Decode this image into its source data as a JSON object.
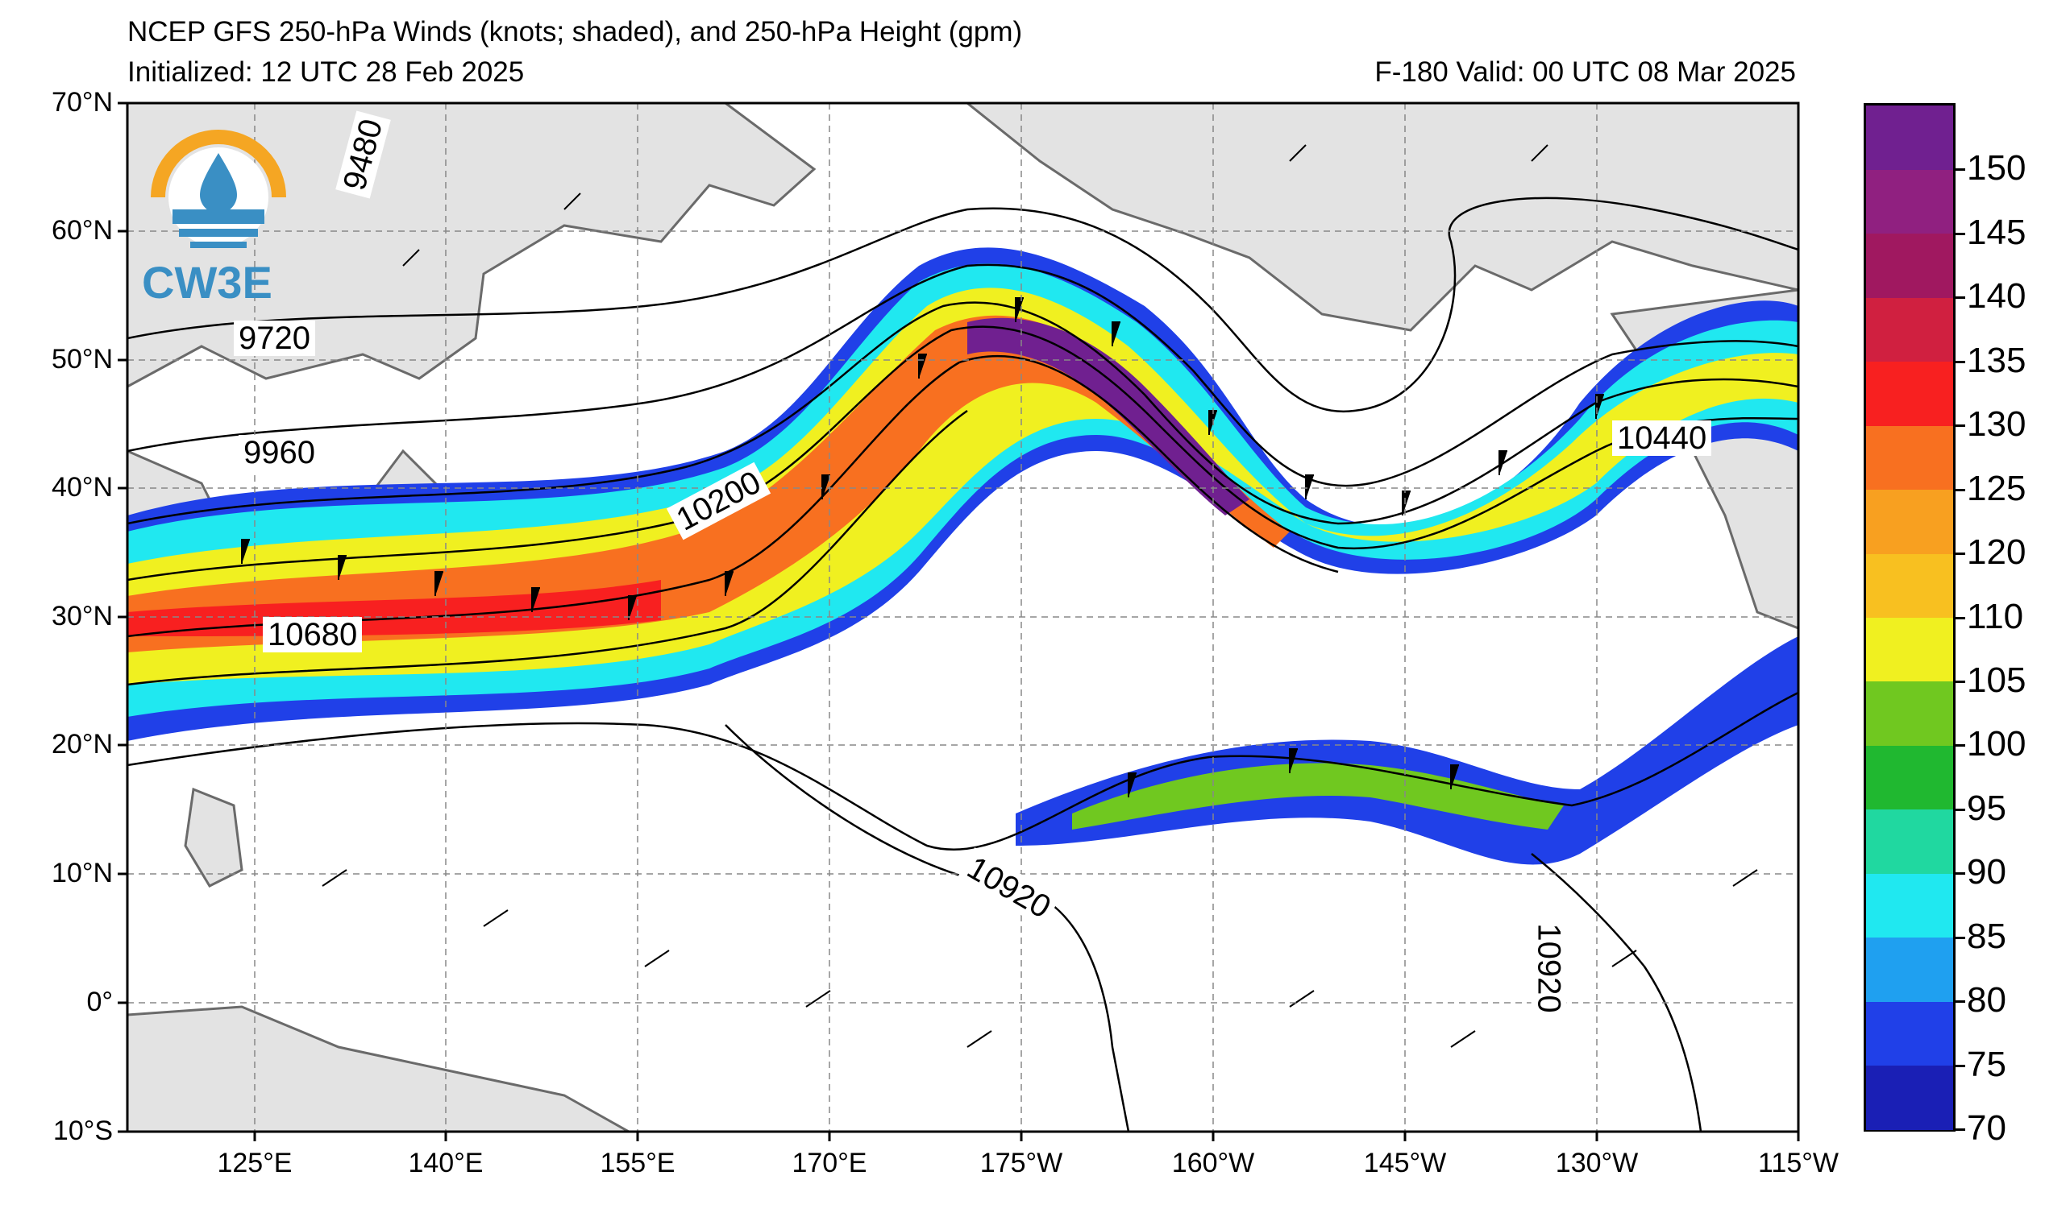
{
  "header": {
    "title": "NCEP GFS 250-hPa Winds (knots; shaded), and 250-hPa Height (gpm)",
    "initialized": "Initialized: 12 UTC 28 Feb 2025",
    "valid": "F-180  Valid: 00 UTC 08 Mar 2025"
  },
  "logo": {
    "text": "CW3E"
  },
  "map": {
    "lat_labels": [
      "70°N",
      "60°N",
      "50°N",
      "40°N",
      "30°N",
      "20°N",
      "10°N",
      "0°",
      "10°S"
    ],
    "lon_labels": [
      "125°E",
      "140°E",
      "155°E",
      "170°E",
      "175°W",
      "160°W",
      "145°W",
      "130°W",
      "115°W"
    ],
    "contour_labels": [
      "9480",
      "9720",
      "9960",
      "10200",
      "10680",
      "10440",
      "10920",
      "10920"
    ]
  },
  "colorbar": {
    "labels": [
      "70",
      "75",
      "80",
      "85",
      "90",
      "95",
      "100",
      "105",
      "110",
      "120",
      "125",
      "130",
      "135",
      "140",
      "145",
      "150"
    ],
    "colors": [
      "#1a1fb5",
      "#2040e8",
      "#1fa0f0",
      "#20e8f0",
      "#20d8a0",
      "#20b830",
      "#70c820",
      "#f0f020",
      "#f8c020",
      "#f8a020",
      "#f87020",
      "#f82020",
      "#d02040",
      "#a01860",
      "#902080",
      "#702090"
    ]
  }
}
